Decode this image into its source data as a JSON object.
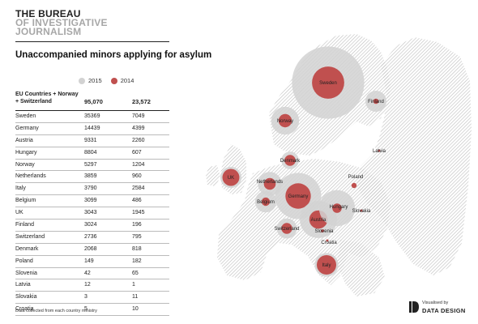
{
  "brand": {
    "line1": "THE BUREAU",
    "line2": "OF INVESTIGATIVE",
    "line3": "JOURNALISM"
  },
  "title": "Unaccompanied minors applying for asylum",
  "legend": [
    {
      "label": "2015",
      "color": "#d2d2d2"
    },
    {
      "label": "2014",
      "color": "#c0504f"
    }
  ],
  "colors": {
    "y2015": "#d2d2d2",
    "y2014": "#c0504f",
    "land": "#cfcfcf"
  },
  "table": {
    "header_label": "EU Countries + Norway + Switzerland",
    "total_2015": "95,070",
    "total_2014": "23,572"
  },
  "chart_data": {
    "type": "table",
    "columns": [
      "2015",
      "2014"
    ],
    "rows": [
      {
        "country": "Sweden",
        "v2015": 35369,
        "v2014": 7049
      },
      {
        "country": "Germany",
        "v2015": 14439,
        "v2014": 4399
      },
      {
        "country": "Austria",
        "v2015": 9331,
        "v2014": 2260
      },
      {
        "country": "Hungary",
        "v2015": 8804,
        "v2014": 607
      },
      {
        "country": "Norway",
        "v2015": 5297,
        "v2014": 1204
      },
      {
        "country": "Netherlands",
        "v2015": 3859,
        "v2014": 960
      },
      {
        "country": "Italy",
        "v2015": 3790,
        "v2014": 2584
      },
      {
        "country": "Belgium",
        "v2015": 3099,
        "v2014": 486
      },
      {
        "country": "UK",
        "v2015": 3043,
        "v2014": 1945
      },
      {
        "country": "Finland",
        "v2015": 3024,
        "v2014": 196
      },
      {
        "country": "Switzerland",
        "v2015": 2736,
        "v2014": 795
      },
      {
        "country": "Denmark",
        "v2015": 2068,
        "v2014": 818
      },
      {
        "country": "Poland",
        "v2015": 149,
        "v2014": 182
      },
      {
        "country": "Slovenia",
        "v2015": 42,
        "v2014": 65
      },
      {
        "country": "Latvia",
        "v2015": 12,
        "v2014": 1
      },
      {
        "country": "Slovakia",
        "v2015": 3,
        "v2014": 11
      },
      {
        "country": "Croatia",
        "v2015": 5,
        "v2014": 10
      }
    ]
  },
  "footer_note": "Data collected from each country ministry",
  "credit": {
    "visualized_by": "Visualised by",
    "studio": "DATA DESIGN"
  }
}
